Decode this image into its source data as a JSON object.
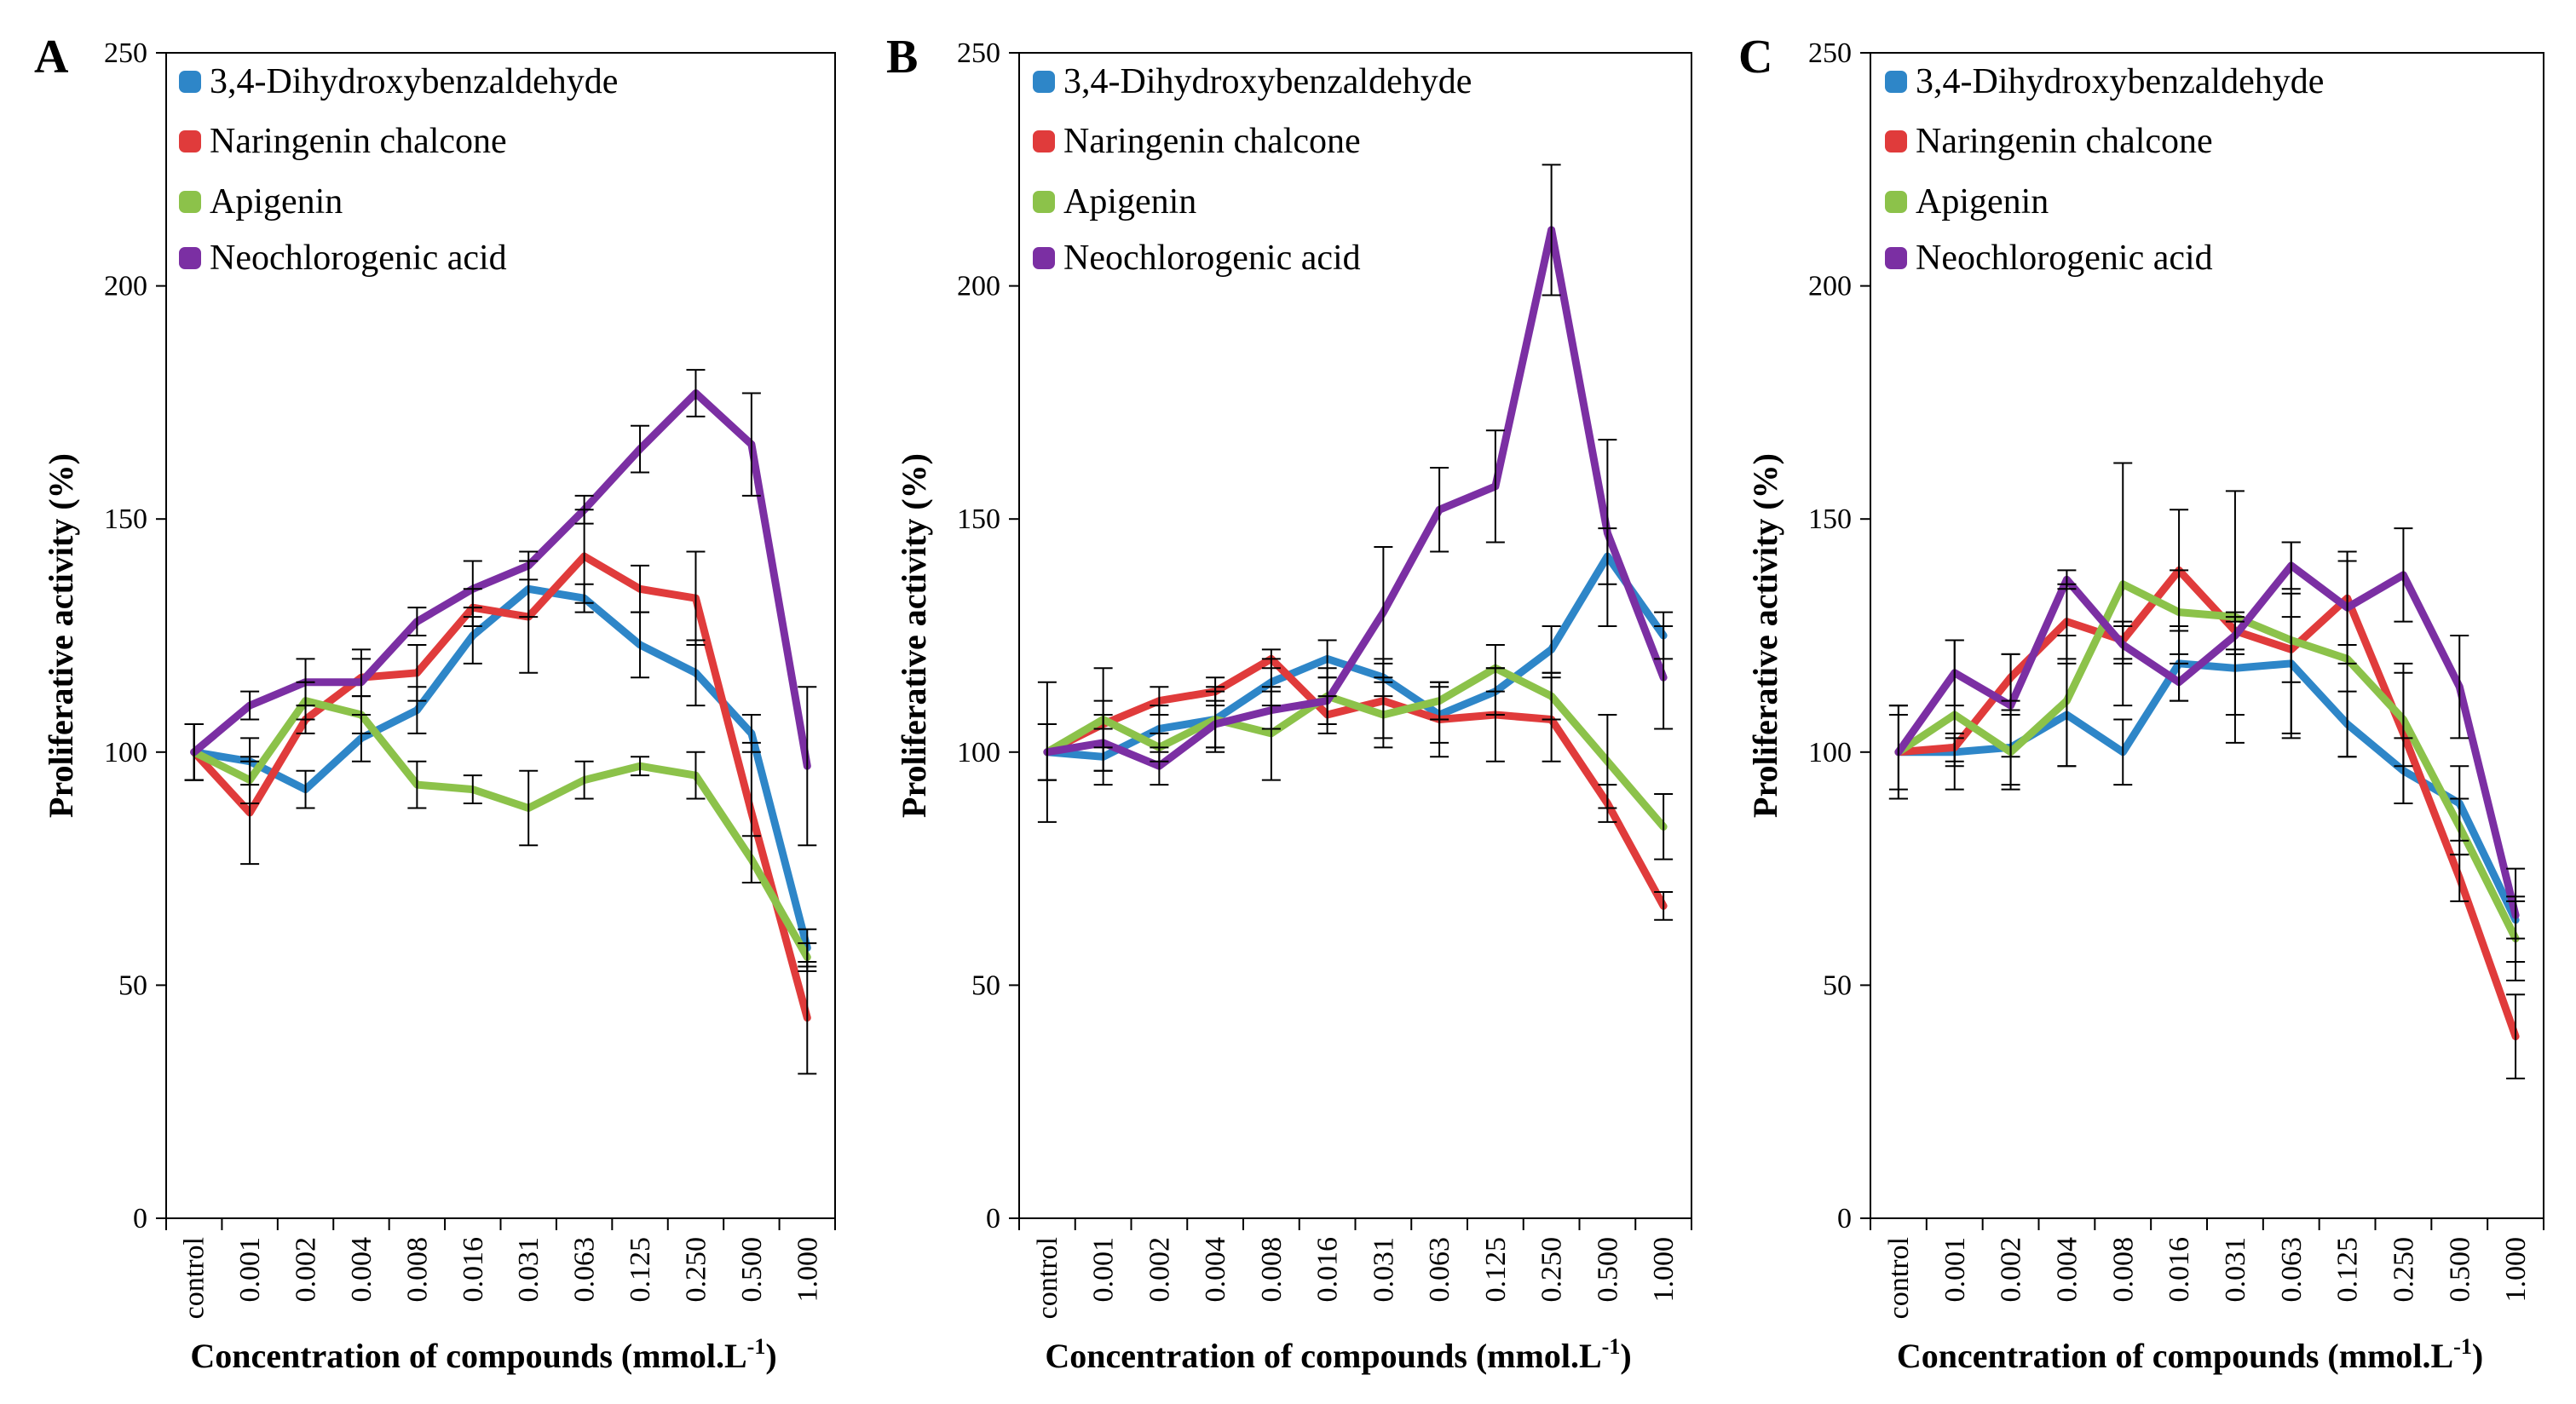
{
  "colors": {
    "3,4-Dihydroxybenzaldehyde": "#2E86C8",
    "Naringenin chalcone": "#E03B3B",
    "Apigenin": "#8CC24A",
    "Neochlorogenic acid": "#7B2FA3"
  },
  "chart_data": [
    {
      "panel": "A",
      "type": "line",
      "xlabel": "Concentration of compounds (mmol.L",
      "xlabel_superscript": "-1",
      "xlabel_close": ")",
      "ylabel": "Proliferative activity (%)",
      "ylim": [
        0,
        250
      ],
      "yticks": [
        "0",
        "50",
        "100",
        "150",
        "200",
        "250"
      ],
      "categories": [
        "control",
        "0.001",
        "0.002",
        "0.004",
        "0.008",
        "0.016",
        "0.031",
        "0.063",
        "0.125",
        "0.250",
        "0.500",
        "1.000"
      ],
      "series": [
        {
          "name": "3,4-Dihydroxybenzaldehyde",
          "values": [
            100,
            98,
            92,
            103,
            109,
            125,
            135,
            133,
            123,
            117,
            104,
            58
          ],
          "errors": [
            6,
            5,
            4,
            5,
            5,
            6,
            6,
            3,
            7,
            7,
            4,
            4
          ]
        },
        {
          "name": "Naringenin chalcone",
          "values": [
            100,
            87,
            107,
            116,
            117,
            131,
            129,
            142,
            135,
            133,
            87,
            43
          ],
          "errors": [
            6,
            11,
            3,
            4,
            6,
            4,
            12,
            10,
            5,
            10,
            15,
            12
          ]
        },
        {
          "name": "Apigenin",
          "values": [
            100,
            94,
            111,
            108,
            93,
            92,
            88,
            94,
            97,
            95,
            77,
            56
          ],
          "errors": [
            6,
            5,
            4,
            4,
            5,
            3,
            8,
            4,
            2,
            5,
            5,
            3
          ]
        },
        {
          "name": "Neochlorogenic acid",
          "values": [
            100,
            110,
            115,
            115,
            128,
            135,
            140,
            152,
            165,
            177,
            166,
            97
          ],
          "errors": [
            6,
            3,
            5,
            7,
            3,
            6,
            3,
            3,
            5,
            5,
            11,
            17
          ]
        }
      ]
    },
    {
      "panel": "B",
      "type": "line",
      "xlabel": "Concentration of compounds (mmol.L",
      "xlabel_superscript": "-1",
      "xlabel_close": ")",
      "ylabel": "Proliferative activity (%)",
      "ylim": [
        0,
        250
      ],
      "yticks": [
        "0",
        "50",
        "100",
        "150",
        "200",
        "250"
      ],
      "categories": [
        "control",
        "0.001",
        "0.002",
        "0.004",
        "0.008",
        "0.016",
        "0.031",
        "0.063",
        "0.125",
        "0.250",
        "0.500",
        "1.000"
      ],
      "series": [
        {
          "name": "3,4-Dihydroxybenzaldehyde",
          "values": [
            100,
            99,
            105,
            107,
            115,
            120,
            116,
            108,
            113,
            122,
            142,
            125
          ],
          "errors": [
            15,
            6,
            5,
            6,
            5,
            4,
            4,
            6,
            5,
            5,
            6,
            5
          ]
        },
        {
          "name": "Naringenin chalcone",
          "values": [
            100,
            106,
            111,
            113,
            120,
            108,
            111,
            107,
            108,
            107,
            89,
            67
          ],
          "errors": [
            6,
            5,
            3,
            3,
            2,
            4,
            8,
            8,
            10,
            9,
            4,
            3
          ]
        },
        {
          "name": "Apigenin",
          "values": [
            100,
            107,
            101,
            107,
            104,
            112,
            108,
            111,
            118,
            112,
            98,
            84
          ],
          "errors": [
            6,
            11,
            3,
            7,
            10,
            6,
            7,
            4,
            5,
            5,
            10,
            7
          ]
        },
        {
          "name": "Neochlorogenic acid",
          "values": [
            100,
            102,
            97,
            106,
            109,
            111,
            130,
            152,
            157,
            212,
            147,
            116
          ],
          "errors": [
            6,
            6,
            4,
            5,
            4,
            5,
            14,
            9,
            12,
            14,
            20,
            11
          ]
        }
      ]
    },
    {
      "panel": "C",
      "type": "line",
      "xlabel": "Concentration of compounds (mmol.L",
      "xlabel_superscript": "-1",
      "xlabel_close": ")",
      "ylabel": "Proliferative activity (%)",
      "ylim": [
        0,
        250
      ],
      "yticks": [
        "0",
        "50",
        "100",
        "150",
        "200",
        "250"
      ],
      "categories": [
        "control",
        "0.001",
        "0.002",
        "0.004",
        "0.008",
        "0.016",
        "0.031",
        "0.063",
        "0.125",
        "0.250",
        "0.500",
        "1.000"
      ],
      "series": [
        {
          "name": "3,4-Dihydroxybenzaldehyde",
          "values": [
            100,
            100,
            101,
            108,
            100,
            119,
            118,
            119,
            106,
            96,
            89,
            64
          ],
          "errors": [
            10,
            3,
            8,
            11,
            7,
            8,
            10,
            15,
            7,
            7,
            8,
            4
          ]
        },
        {
          "name": "Naringenin chalcone",
          "values": [
            100,
            101,
            116,
            128,
            124,
            139,
            126,
            122,
            133,
            104,
            73,
            39
          ],
          "errors": [
            10,
            3,
            5,
            8,
            4,
            13,
            4,
            7,
            10,
            15,
            5,
            9
          ]
        },
        {
          "name": "Apigenin",
          "values": [
            100,
            108,
            100,
            111,
            136,
            130,
            129,
            124,
            120,
            107,
            84,
            60
          ],
          "errors": [
            10,
            16,
            8,
            14,
            26,
            9,
            27,
            21,
            21,
            10,
            6,
            9
          ]
        },
        {
          "name": "Neochlorogenic acid",
          "values": [
            100,
            117,
            110,
            137,
            123,
            115,
            125,
            140,
            131,
            138,
            114,
            65
          ],
          "errors": [
            8,
            7,
            11,
            2,
            4,
            4,
            4,
            5,
            12,
            10,
            11,
            10
          ]
        }
      ]
    }
  ]
}
